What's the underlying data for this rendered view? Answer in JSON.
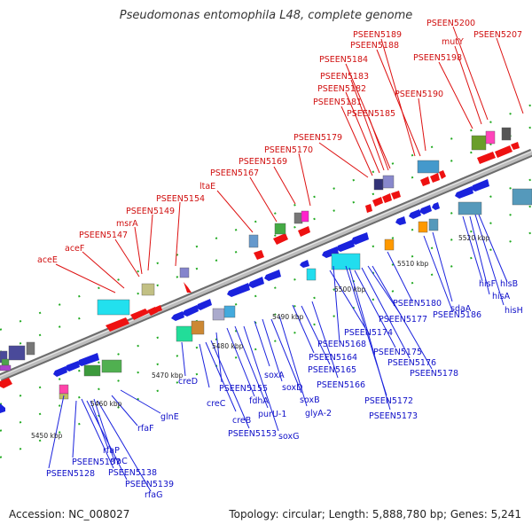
{
  "title": "Pseudomonas entomophila L48, complete genome",
  "accession": "Accession: NC_008027",
  "summary": "Topology: circular; Length: 5,888,780 bp; Genes: 5,241",
  "colors": {
    "forward_label": "#d01010",
    "reverse_label": "#1010c8",
    "forward_gene": "#ee1111",
    "reverse_gene": "#1a22dd",
    "backbone": "#8a8a8a",
    "tick": "#22aa22"
  },
  "kbp_ticks": [
    "5450 kbp",
    "5460 kbp",
    "5470 kbp",
    "5480 kbp",
    "5490 kbp",
    "5500 kbp",
    "5510 kbp",
    "5520 kbp"
  ],
  "top_labels": [
    "aceE",
    "aceF",
    "PSEEN5147",
    "msrA",
    "PSEEN5149",
    "PSEEN5154",
    "ltaE",
    "PSEEN5167",
    "PSEEN5169",
    "PSEEN5170",
    "PSEEN5179",
    "PSEEN5181",
    "PSEEN5182",
    "PSEEN5183",
    "PSEEN5184",
    "PSEEN5185",
    "PSEEN5188",
    "PSEEN5189",
    "PSEEN5190",
    "PSEEN5198",
    "mutY",
    "PSEEN5200",
    "PSEEN5207"
  ],
  "bottom_labels": [
    "PSEEN5128",
    "PSEEN5137",
    "PSEEN5138",
    "PSEEN5139",
    "rfaP",
    "rfaC",
    "rfaG",
    "rfaF",
    "glnE",
    "creD",
    "creC",
    "creB",
    "PSEEN5153",
    "PSEEN5155",
    "fdhA",
    "purU-1",
    "soxA",
    "soxD",
    "soxG",
    "soxB",
    "glyA-2",
    "PSEEN5164",
    "PSEEN5165",
    "PSEEN5166",
    "PSEEN5168",
    "PSEEN5172",
    "PSEEN5173",
    "PSEEN5174",
    "PSEEN5175",
    "PSEEN5176",
    "PSEEN5177",
    "PSEEN5178",
    "PSEEN5180",
    "PSEEN5186",
    "sdaA",
    "hisF",
    "hisB",
    "hisA",
    "hisH"
  ]
}
